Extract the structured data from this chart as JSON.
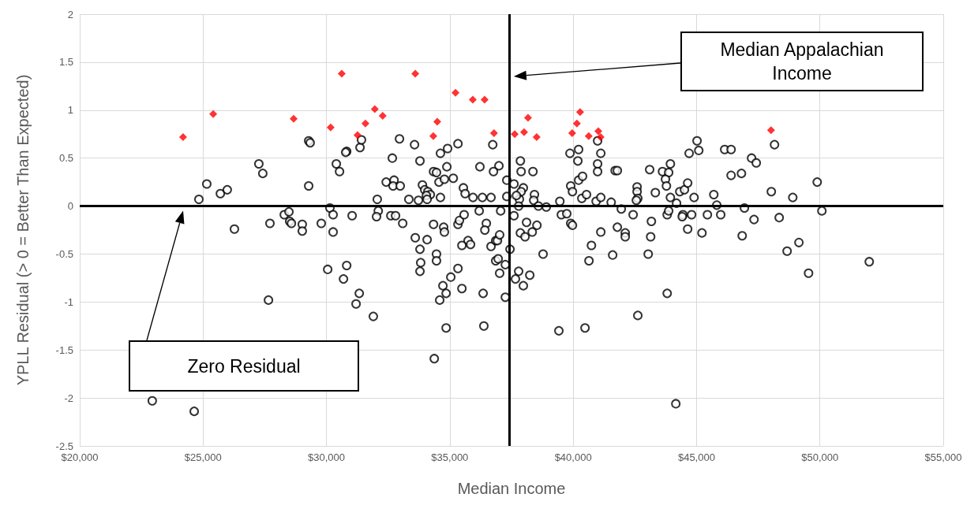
{
  "chart_data": {
    "type": "scatter",
    "xlabel": "Median Income",
    "ylabel": "YPLL Residual (> 0 = Better Than Expected)",
    "xlim": [
      20000,
      55000
    ],
    "xticks": [
      {
        "value": 20000,
        "label": "$20,000"
      },
      {
        "value": 25000,
        "label": "$25,000"
      },
      {
        "value": 30000,
        "label": "$30,000"
      },
      {
        "value": 35000,
        "label": "$35,000"
      },
      {
        "value": 40000,
        "label": "$40,000"
      },
      {
        "value": 45000,
        "label": "$45,000"
      },
      {
        "value": 50000,
        "label": "$50,000"
      },
      {
        "value": 55000,
        "label": "$55,000"
      }
    ],
    "ylim": [
      -2.5,
      2
    ],
    "yticks": [
      -2.5,
      -2,
      -1.5,
      -1,
      -0.5,
      0,
      0.5,
      1,
      1.5,
      2
    ],
    "grid": true,
    "ref_lines": [
      {
        "axis": "x",
        "value": 37400,
        "color": "#000000",
        "line_style": "solid"
      },
      {
        "axis": "y",
        "value": 0,
        "color": "#000000",
        "line_style": "solid"
      }
    ],
    "annotations": [
      "Median Appalachian Income",
      "Zero Residual"
    ],
    "series": [
      {
        "marker": "circle",
        "color": "#000000",
        "x": [
          24830,
          25150,
          25700,
          25980,
          27260,
          27420,
          29280,
          29340,
          29280,
          30400,
          30530,
          30820,
          30780,
          31360,
          31420,
          28290,
          28480,
          28510,
          28580,
          27710,
          26270,
          29020,
          29020,
          29790,
          30140,
          30270,
          30270,
          31040,
          30050,
          30820,
          30690,
          31330,
          31200,
          27650,
          22940,
          24640,
          32960,
          33570,
          32670,
          33790,
          34620,
          34910,
          35330,
          36740,
          34340,
          34460,
          34880,
          36220,
          36990,
          36770,
          32420,
          32740,
          32700,
          32990,
          33890,
          33980,
          34110,
          34210,
          34050,
          34560,
          34780,
          35140,
          35550,
          35620,
          35940,
          36320,
          36670,
          37310,
          34620,
          32060,
          33340,
          33730,
          34080,
          37860,
          37890,
          38370,
          37600,
          37980,
          37890,
          37820,
          37700,
          38430,
          38400,
          37310,
          39870,
          40220,
          40190,
          39900,
          39970,
          40220,
          40380,
          40350,
          40540,
          39460,
          32100,
          32030,
          32610,
          32800,
          33090,
          34340,
          34750,
          35330,
          35390,
          35580,
          36190,
          36480,
          36420,
          37060,
          37790,
          37600,
          38110,
          38530,
          38590,
          38910,
          39520,
          39740,
          39900,
          39970,
          34780,
          38340,
          37860,
          38050,
          33600,
          34080,
          33790,
          33820,
          33790,
          34460,
          34460,
          35040,
          35330,
          34720,
          34850,
          34590,
          35490,
          35740,
          35840,
          35490,
          36670,
          36860,
          36930,
          37020,
          37440,
          36860,
          36960,
          37250,
          37020,
          36350,
          37250,
          37790,
          37660,
          38240,
          37980,
          38780,
          40640,
          40740,
          31900,
          34850,
          36380,
          39420,
          40480,
          34370,
          40990,
          41120,
          40990,
          40990,
          41700,
          41790,
          40930,
          41120,
          41540,
          41950,
          43100,
          43620,
          43870,
          43940,
          43740,
          43780,
          42590,
          42590,
          42620,
          42560,
          43330,
          43940,
          44190,
          44320,
          44510,
          44640,
          44700,
          45020,
          45090,
          44900,
          45700,
          45820,
          46140,
          46400,
          47230,
          47420,
          46400,
          46820,
          48160,
          48030,
          48900,
          49890,
          42430,
          43170,
          43810,
          43870,
          44450,
          44420,
          44800,
          45440,
          45980,
          46940,
          47330,
          48350,
          50080,
          41120,
          41790,
          42110,
          42110,
          44640,
          45220,
          46850,
          41600,
          43040,
          43140,
          48670,
          49150,
          49540,
          43810,
          42620,
          44160,
          52000
        ],
        "values": [
          0.07,
          0.23,
          0.13,
          0.17,
          0.44,
          0.34,
          0.68,
          0.66,
          0.21,
          0.44,
          0.36,
          0.57,
          0.56,
          0.61,
          0.69,
          -0.09,
          -0.06,
          -0.16,
          -0.18,
          -0.18,
          -0.24,
          -0.19,
          -0.26,
          -0.18,
          -0.02,
          -0.09,
          -0.27,
          -0.1,
          -0.66,
          -0.62,
          -0.76,
          -0.91,
          -1.02,
          -0.98,
          -2.03,
          -2.14,
          0.7,
          0.64,
          0.5,
          0.47,
          0.55,
          0.6,
          0.65,
          0.64,
          0.36,
          0.35,
          0.41,
          0.41,
          0.42,
          0.36,
          0.25,
          0.27,
          0.21,
          0.21,
          0.22,
          0.17,
          0.15,
          0.12,
          0.11,
          0.25,
          0.28,
          0.29,
          0.19,
          0.13,
          0.09,
          0.09,
          0.09,
          0.27,
          0.09,
          0.07,
          0.07,
          0.06,
          0.07,
          0.47,
          0.36,
          0.36,
          0.23,
          0.19,
          0.15,
          0.07,
          0.11,
          0.12,
          0.06,
          0.1,
          0.55,
          0.59,
          0.47,
          0.21,
          0.15,
          0.27,
          0.31,
          0.08,
          0.12,
          0.05,
          -0.05,
          -0.11,
          -0.1,
          -0.1,
          -0.18,
          -0.19,
          -0.22,
          -0.19,
          -0.15,
          -0.09,
          -0.05,
          -0.18,
          -0.25,
          -0.05,
          0,
          -0.1,
          -0.17,
          -0.2,
          0,
          -0.01,
          -0.09,
          -0.08,
          -0.18,
          -0.2,
          -0.27,
          -0.27,
          -0.28,
          -0.32,
          -0.33,
          -0.35,
          -0.45,
          -0.59,
          -0.68,
          -0.5,
          -0.57,
          -0.74,
          -0.65,
          -0.83,
          -0.91,
          -0.98,
          -0.86,
          -0.36,
          -0.4,
          -0.41,
          -0.42,
          -0.36,
          -0.36,
          -0.3,
          -0.45,
          -0.57,
          -0.55,
          -0.61,
          -0.7,
          -0.91,
          -0.95,
          -0.68,
          -0.76,
          -0.72,
          -0.83,
          -0.5,
          -0.57,
          -0.41,
          -1.15,
          -1.27,
          -1.25,
          -1.3,
          -1.27,
          -1.59,
          0.68,
          0.55,
          0.44,
          0.36,
          0.37,
          0.37,
          0.05,
          0.09,
          0.04,
          -0.03,
          0.38,
          0.36,
          0.35,
          0.44,
          0.28,
          0.21,
          0.2,
          0.15,
          0.08,
          0.06,
          0.14,
          0.09,
          0.03,
          0.15,
          0.17,
          0.24,
          0.55,
          0.68,
          0.58,
          0.09,
          0.12,
          0.01,
          0.59,
          0.59,
          0.5,
          0.45,
          0.32,
          0.34,
          0.64,
          0.15,
          0.09,
          0.25,
          -0.09,
          -0.16,
          -0.09,
          -0.05,
          -0.09,
          -0.11,
          -0.09,
          -0.09,
          -0.09,
          -0.02,
          -0.14,
          -0.12,
          -0.05,
          -0.27,
          -0.22,
          -0.28,
          -0.32,
          -0.24,
          -0.28,
          -0.31,
          -0.51,
          -0.5,
          -0.32,
          -0.47,
          -0.38,
          -0.7,
          -0.91,
          -1.14,
          -2.06,
          -0.58
        ]
      },
      {
        "marker": "diamond",
        "color": "#ff0000",
        "x": [
          24190,
          25410,
          28670,
          30170,
          31260,
          30620,
          31580,
          31960,
          32280,
          34490,
          34330,
          35230,
          35930,
          36410,
          36790,
          37630,
          38010,
          38170,
          38520,
          39960,
          40150,
          40280,
          40630,
          41020,
          41110,
          48020,
          33600
        ],
        "values": [
          0.72,
          0.96,
          0.91,
          0.82,
          0.74,
          1.38,
          0.86,
          1.01,
          0.94,
          0.88,
          0.73,
          1.18,
          1.11,
          1.11,
          0.76,
          0.75,
          0.77,
          0.92,
          0.72,
          0.76,
          0.86,
          0.98,
          0.73,
          0.78,
          0.72,
          0.79,
          1.38
        ]
      }
    ]
  }
}
